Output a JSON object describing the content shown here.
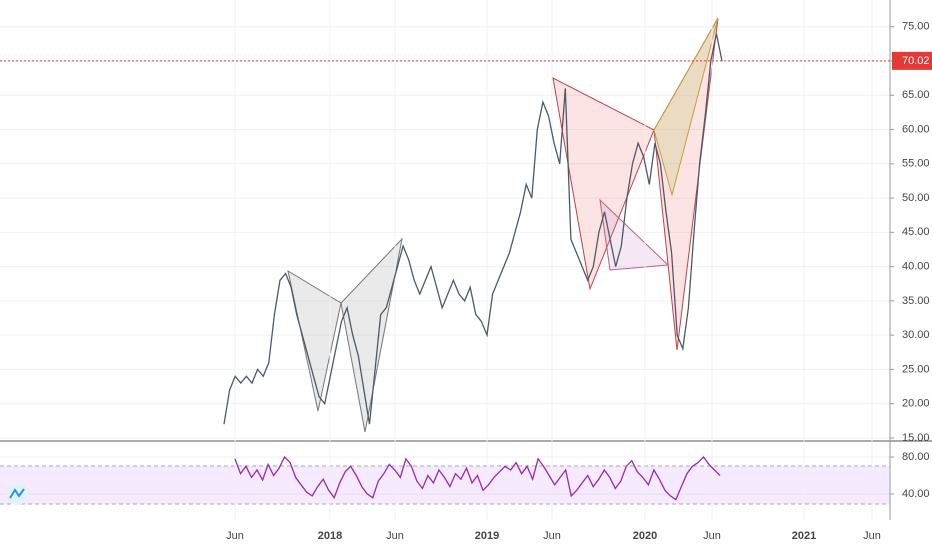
{
  "chart_data": [
    {
      "type": "line",
      "color": "#4d5a66",
      "grid": true,
      "values": [
        17,
        22,
        24,
        23,
        24,
        23,
        25,
        24,
        26,
        33,
        38,
        39,
        37,
        33,
        30,
        27,
        24,
        21,
        20,
        24,
        28,
        32,
        34,
        30,
        27,
        22,
        17,
        25,
        33,
        34,
        37,
        40,
        43,
        41,
        38,
        36,
        38,
        40,
        37,
        34,
        36,
        38,
        36,
        35,
        37,
        33,
        32,
        30,
        36,
        38,
        40,
        42,
        45,
        48,
        52,
        50,
        60,
        64,
        62,
        58,
        55,
        66,
        44,
        42,
        40,
        38,
        40,
        45,
        48,
        44,
        40,
        43,
        50,
        55,
        58,
        56,
        52,
        58,
        55,
        48,
        42,
        30,
        28,
        34,
        45,
        55,
        62,
        70,
        74,
        70
      ],
      "last_value": 70.02,
      "last_color": "#e53935",
      "ylim": [
        14.7,
        78.9
      ],
      "yticks": [
        {
          "value": 15,
          "label": "15.00"
        },
        {
          "value": 20,
          "label": "20.00"
        },
        {
          "value": 25,
          "label": "25.00"
        },
        {
          "value": 30,
          "label": "30.00"
        },
        {
          "value": 35,
          "label": "35.00"
        },
        {
          "value": 40,
          "label": "40.00"
        },
        {
          "value": 45,
          "label": "45.00"
        },
        {
          "value": 50,
          "label": "50.00"
        },
        {
          "value": 55,
          "label": "55.00"
        },
        {
          "value": 60,
          "label": "60.00"
        },
        {
          "value": 65,
          "label": "65.00"
        },
        {
          "value": 70,
          "label": "70.00"
        },
        {
          "value": 75,
          "label": "75.00"
        }
      ],
      "x_labels": [
        "Jun",
        "2018",
        "Jun",
        "2019",
        "Jun",
        "2020",
        "Jun",
        "2021",
        "Jun"
      ]
    },
    {
      "type": "line",
      "color": "#9c27b0",
      "grid": true,
      "values": [
        78,
        62,
        70,
        58,
        66,
        55,
        72,
        60,
        68,
        80,
        74,
        58,
        50,
        42,
        38,
        48,
        56,
        44,
        36,
        52,
        64,
        70,
        60,
        48,
        40,
        36,
        54,
        62,
        72,
        66,
        58,
        78,
        70,
        54,
        46,
        60,
        52,
        66,
        58,
        48,
        62,
        56,
        68,
        52,
        60,
        44,
        50,
        58,
        64,
        70,
        66,
        74,
        62,
        70,
        56,
        78,
        70,
        60,
        50,
        58,
        66,
        38,
        44,
        52,
        60,
        48,
        56,
        66,
        58,
        46,
        54,
        70,
        76,
        64,
        58,
        50,
        66,
        56,
        44,
        38,
        34,
        48,
        62,
        70,
        74,
        80,
        72,
        66,
        60
      ],
      "ylim": [
        17.3,
        93
      ],
      "yticks": [
        {
          "value": 40,
          "label": "40.00"
        },
        {
          "value": 80,
          "label": "80.00"
        }
      ]
    }
  ]
}
